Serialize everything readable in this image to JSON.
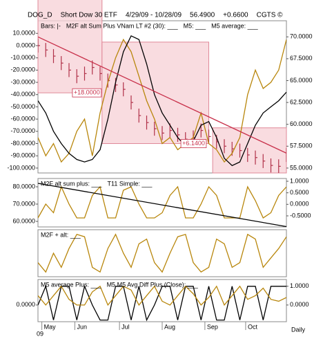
{
  "chart_data": {
    "header": [
      "DOG_D",
      "Short Dow 30 ETF",
      "4/29/09 - 10/28/09",
      "56.4900",
      "+0.6600",
      "CGTS ©"
    ],
    "x": [
      0,
      4,
      8,
      12,
      16,
      20,
      24,
      28,
      32,
      36,
      40,
      44,
      48,
      52,
      56,
      60,
      64,
      68,
      72,
      76,
      80,
      84,
      88,
      92,
      96,
      100,
      104,
      108,
      112,
      116,
      120,
      124,
      128
    ],
    "xlim": [
      0,
      128
    ],
    "xticks": [
      {
        "value": 2,
        "label": "May"
      },
      {
        "value": 19,
        "label": "Jun"
      },
      {
        "value": 42,
        "label": "Jul"
      },
      {
        "value": 64,
        "label": "Aug"
      },
      {
        "value": 86,
        "label": "Sep"
      },
      {
        "value": 107,
        "label": "Oct"
      }
    ],
    "year_label": "09",
    "interval": "Daily",
    "panels": [
      {
        "type": "ohlc",
        "legend": [
          "Bars: |-",
          "M2F alt Sum Plus VNam LT #2 (30): ___",
          "M5: ___",
          "M5 average: ___"
        ],
        "ylim": [
          -104,
          20.3
        ],
        "yticks": [
          {
            "value": 10,
            "label": "10.0000"
          },
          {
            "value": 0,
            "label": "0.0000"
          },
          {
            "value": -10,
            "label": "-10.0000"
          },
          {
            "value": -20,
            "label": "-20.0000"
          },
          {
            "value": -30,
            "label": "-30.0000"
          },
          {
            "value": -40,
            "label": "-40.0000"
          },
          {
            "value": -50,
            "label": "-50.0000"
          },
          {
            "value": -60,
            "label": "-60.0000"
          },
          {
            "value": -70,
            "label": "-70.0000"
          },
          {
            "value": -80,
            "label": "-80.0000"
          },
          {
            "value": -90,
            "label": "-90.0000"
          },
          {
            "value": -100,
            "label": "-100.0000"
          }
        ],
        "y2lim": [
          54.44,
          71.84
        ],
        "y2ticks": [
          {
            "value": 70,
            "label": "70.0000"
          },
          {
            "value": 67.5,
            "label": "67.5000"
          },
          {
            "value": 65,
            "label": "65.0000"
          },
          {
            "value": 62.5,
            "label": "62.5000"
          },
          {
            "value": 60,
            "label": "60.0000"
          },
          {
            "value": 57.5,
            "label": "57.5000"
          },
          {
            "value": 55,
            "label": "55.0000"
          }
        ],
        "boxes": [
          {
            "x": [
              0,
              33
            ],
            "y2": [
              63.6,
              75
            ],
            "label": "+18.0000"
          },
          {
            "x": [
              33,
              88
            ],
            "y2": [
              57.8,
              69.4
            ],
            "label": "+6.1400"
          },
          {
            "x": [
              90,
              128
            ],
            "y2": [
              54.44,
              59.6
            ]
          }
        ],
        "bars": {
          "color": "#b03048",
          "close": [
            69,
            68.5,
            67.8,
            67,
            66.2,
            65.5,
            65.8,
            66.5,
            65.8,
            65,
            64.5,
            64,
            62.5,
            61,
            60.2,
            59.5,
            59,
            59.3,
            58.8,
            58.3,
            58.5,
            59.3,
            58.6,
            58,
            57.5,
            57.2,
            57,
            56.5,
            56.2,
            55.8,
            55.3,
            55.2,
            56.5
          ],
          "high": [
            69.8,
            69.3,
            68.6,
            67.8,
            67,
            66.3,
            66.6,
            67.3,
            66.6,
            65.8,
            65.3,
            64.8,
            63.3,
            61.8,
            61,
            60.3,
            59.8,
            60.1,
            59.6,
            59.1,
            59.3,
            60.1,
            59.4,
            58.8,
            58.3,
            58,
            57.8,
            57.3,
            57,
            56.6,
            56.1,
            56,
            57.3
          ],
          "low": [
            68.2,
            67.7,
            67,
            66.2,
            65.4,
            64.7,
            65,
            65.7,
            65,
            64.2,
            63.7,
            63.2,
            61.7,
            60.2,
            59.4,
            58.7,
            58.2,
            58.5,
            58,
            57.5,
            57.7,
            58.5,
            57.8,
            57.2,
            56.7,
            56.4,
            56.2,
            55.7,
            55.4,
            55,
            54.5,
            54.4,
            55.7
          ]
        },
        "trend": {
          "color": "#c8304a",
          "x": [
            0,
            128
          ],
          "values": [
            70,
            56.7
          ]
        },
        "series": [
          {
            "color": "#b8860b",
            "values": [
              -75,
              -90,
              -80,
              -95,
              -88,
              -70,
              -60,
              -90,
              -55,
              -30,
              -10,
              5,
              -5,
              -25,
              -45,
              -60,
              -80,
              -75,
              -85,
              -80,
              -75,
              -55,
              -80,
              -85,
              -95,
              -88,
              -75,
              -40,
              -20,
              -35,
              -30,
              -20,
              5
            ]
          },
          {
            "color": "#000000",
            "values": [
              -45,
              -55,
              -70,
              -80,
              -88,
              -93,
              -95,
              -93,
              -85,
              -60,
              -30,
              -5,
              8,
              5,
              -15,
              -40,
              -55,
              -65,
              -75,
              -82,
              -78,
              -65,
              -62,
              -75,
              -92,
              -98,
              -95,
              -80,
              -65,
              -55,
              -50,
              -45,
              -38
            ]
          }
        ]
      },
      {
        "type": "line",
        "legend": [
          "M2F alt sum plus: ___",
          "T11 Simple: ___"
        ],
        "ylim": [
          56.8,
          84.8
        ],
        "yticks": [
          {
            "value": 80,
            "label": "80.0000"
          },
          {
            "value": 70,
            "label": "70.0000"
          },
          {
            "value": 60,
            "label": "60.0000"
          }
        ],
        "y2lim": [
          -0.98,
          1.12
        ],
        "y2ticks": [
          {
            "value": 1,
            "label": "1.0000"
          },
          {
            "value": 0.5,
            "label": "0.5000"
          },
          {
            "value": 0,
            "label": "0.0000"
          },
          {
            "value": -0.5,
            "label": "-0.5000"
          }
        ],
        "trend": {
          "color": "#000000",
          "x": [
            0,
            128
          ],
          "values": [
            82,
            57
          ]
        },
        "series": [
          {
            "color": "#b8860b",
            "values": [
              62,
              70,
              65,
              80,
              70,
              62,
              62,
              75,
              80,
              62,
              62,
              78,
              80,
              70,
              62,
              62,
              65,
              75,
              80,
              62,
              62,
              70,
              80,
              75,
              62,
              62,
              62,
              80,
              72,
              62,
              65,
              75,
              80
            ]
          }
        ]
      },
      {
        "type": "line",
        "legend": [
          "M2F + alt: ___"
        ],
        "ylim": [
          0,
          1
        ],
        "series": [
          {
            "color": "#b8860b",
            "values": [
              0.3,
              0.1,
              0.5,
              0.2,
              0.6,
              0.9,
              0.85,
              0.2,
              0.1,
              0.6,
              0.9,
              0.5,
              0.2,
              0.7,
              0.8,
              0.3,
              0.1,
              0.5,
              0.85,
              0.9,
              0.3,
              0.1,
              0.2,
              0.8,
              0.7,
              0.2,
              0.3,
              0.9,
              0.8,
              0.2,
              0.4,
              0.6,
              0.85
            ]
          }
        ]
      },
      {
        "type": "line",
        "legend": [
          "M5 average Plus: ___",
          "M5 M5 Avg Diff Plus (Close): ___"
        ],
        "ylim": [
          -0.89,
          1.36
        ],
        "yticks": [
          {
            "value": 0,
            "label": "0.0000"
          }
        ],
        "y2lim": [
          -0.89,
          1.36
        ],
        "y2ticks": [
          {
            "value": 1,
            "label": "1.0000"
          },
          {
            "value": 0,
            "label": "0.0000"
          }
        ],
        "series": [
          {
            "color": "#000000",
            "values": [
              0,
              1,
              -0.8,
              1,
              1,
              -0.8,
              1,
              0,
              -0.8,
              -0.8,
              1,
              1,
              -0.8,
              1,
              -0.8,
              0,
              1,
              1,
              -0.8,
              1,
              1,
              -0.8,
              1,
              -0.8,
              -0.8,
              1,
              -0.8,
              1,
              1,
              -0.8,
              1,
              1,
              1
            ]
          },
          {
            "color": "#b8860b",
            "values": [
              0.5,
              0,
              0.5,
              1,
              0.3,
              0,
              0,
              0.7,
              1,
              0,
              0.5,
              1,
              0.8,
              0,
              0.5,
              1,
              0.2,
              0,
              0.5,
              1,
              0.6,
              0,
              0.4,
              1,
              0,
              0.5,
              1,
              0.3,
              0.5,
              0.9,
              0.3,
              0.2,
              0.4
            ]
          }
        ]
      }
    ]
  }
}
